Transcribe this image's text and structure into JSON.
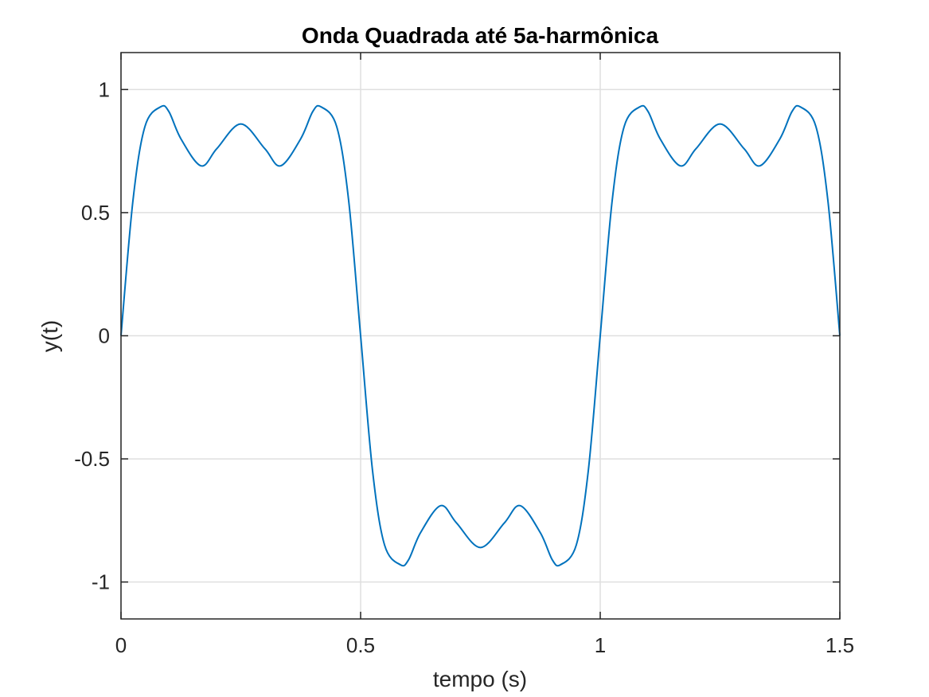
{
  "chart_data": {
    "type": "line",
    "title": "Onda Quadrada até 5a-harmônica",
    "xlabel": "tempo (s)",
    "ylabel": "y(t)",
    "xlim": [
      0,
      1.5
    ],
    "ylim": [
      -1.15,
      1.15
    ],
    "xticks": [
      0,
      0.5,
      1,
      1.5
    ],
    "xtick_labels": [
      "0",
      "0.5",
      "1",
      "1.5"
    ],
    "yticks": [
      -1,
      -0.5,
      0,
      0.5,
      1
    ],
    "ytick_labels": [
      "-1",
      "-0.5",
      "0",
      "0.5",
      "1"
    ],
    "grid": true,
    "line_color": "#0072BD",
    "series": [
      {
        "x": [
          0,
          0.025,
          0.05,
          0.083,
          0.1,
          0.125,
          0.167,
          0.2,
          0.25,
          0.3,
          0.333,
          0.375,
          0.4,
          0.417,
          0.45,
          0.475,
          0.5,
          0.525,
          0.55,
          0.583,
          0.6,
          0.625,
          0.667,
          0.7,
          0.75,
          0.8,
          0.833,
          0.875,
          0.9,
          0.917,
          0.95,
          0.975,
          1.0,
          1.025,
          1.05,
          1.083,
          1.1,
          1.125,
          1.167,
          1.2,
          1.25,
          1.3,
          1.333,
          1.375,
          1.4,
          1.417,
          1.45,
          1.475,
          1.5
        ],
        "y": [
          0,
          0.55,
          0.85,
          0.93,
          0.91,
          0.8,
          0.69,
          0.76,
          0.86,
          0.76,
          0.69,
          0.8,
          0.91,
          0.93,
          0.85,
          0.55,
          0,
          -0.55,
          -0.85,
          -0.93,
          -0.91,
          -0.8,
          -0.69,
          -0.76,
          -0.86,
          -0.76,
          -0.69,
          -0.8,
          -0.91,
          -0.93,
          -0.85,
          -0.55,
          0,
          0.55,
          0.85,
          0.93,
          0.91,
          0.8,
          0.69,
          0.76,
          0.86,
          0.76,
          0.69,
          0.8,
          0.91,
          0.93,
          0.85,
          0.55,
          0
        ]
      }
    ]
  }
}
